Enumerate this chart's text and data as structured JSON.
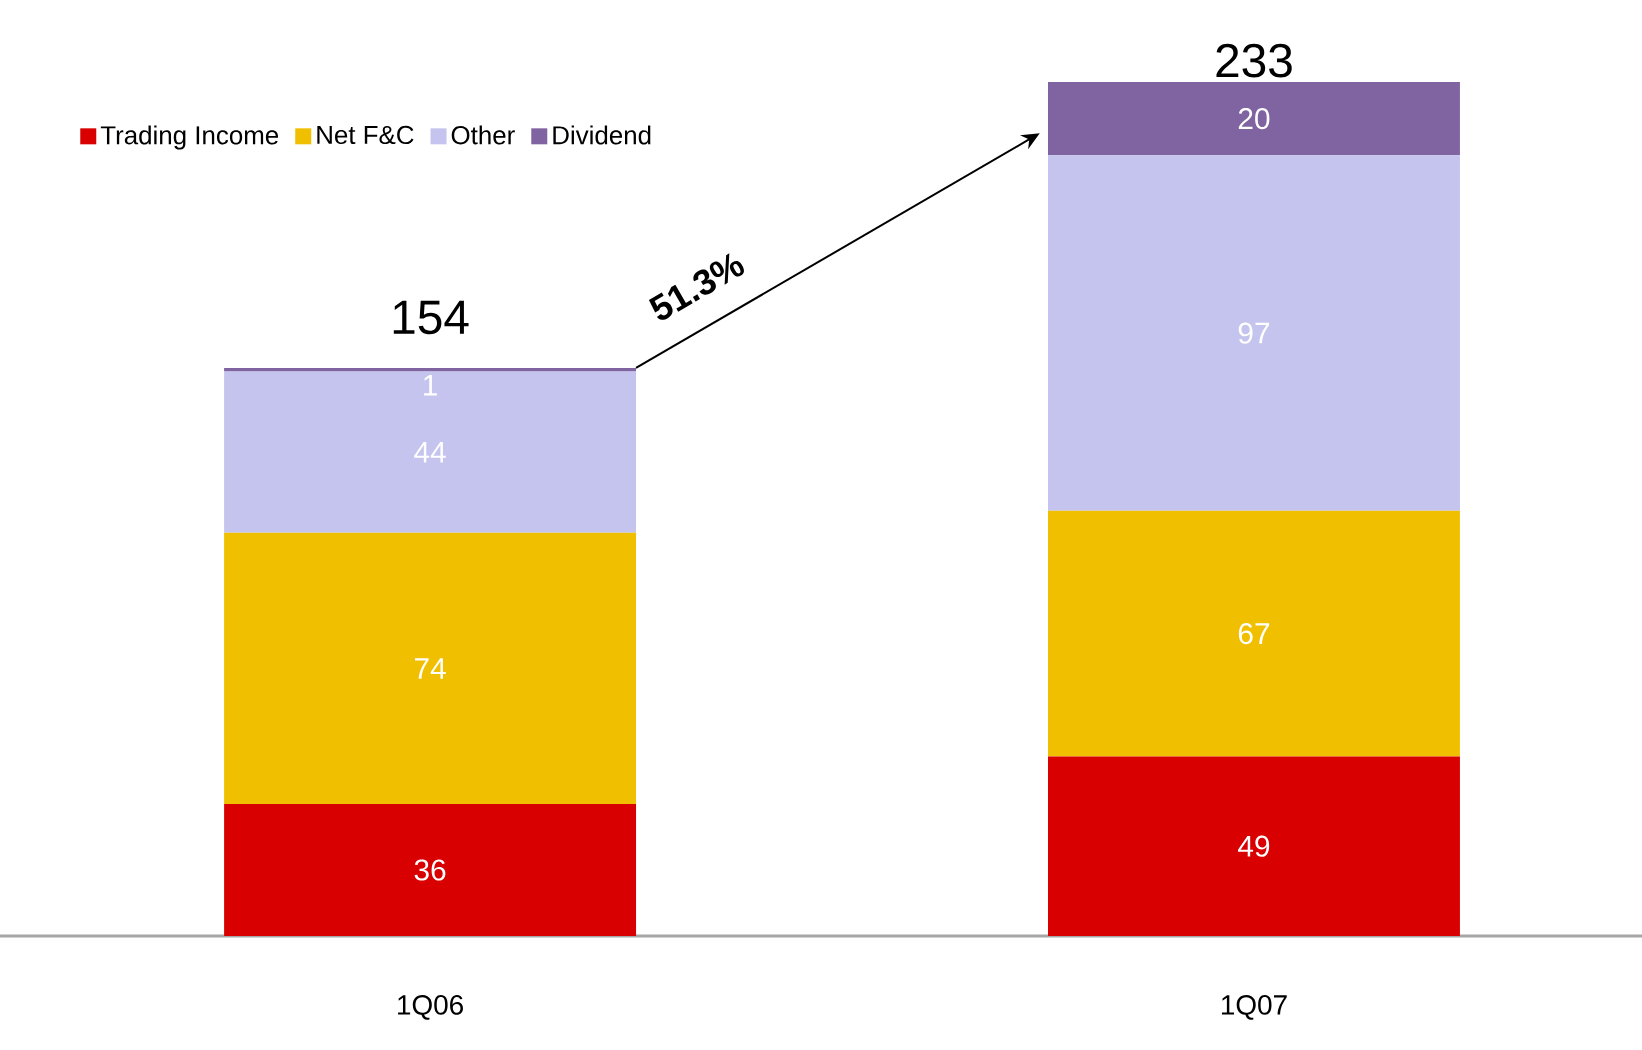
{
  "chart_data": {
    "type": "bar",
    "stacked": true,
    "categories": [
      "1Q06",
      "1Q07"
    ],
    "series": [
      {
        "name": "Trading Income",
        "color": "#d80000",
        "values": [
          36,
          49
        ]
      },
      {
        "name": "Net F&C",
        "color": "#f0c000",
        "values": [
          74,
          67
        ]
      },
      {
        "name": "Other",
        "color": "#c4c4ee",
        "values": [
          44,
          97
        ]
      },
      {
        "name": "Dividend",
        "color": "#8064a2",
        "values": [
          1,
          20
        ]
      }
    ],
    "data_labels": true,
    "totals": [
      "154",
      "233"
    ],
    "annotations": [
      "51.3%"
    ],
    "legend": "top left",
    "grid": false
  }
}
